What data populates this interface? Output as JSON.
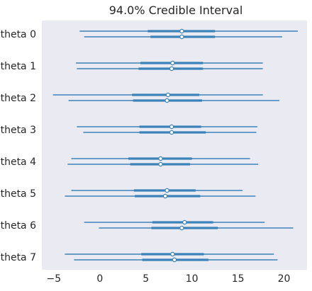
{
  "chart_data": {
    "type": "forest",
    "title": "94.0% Credible Interval",
    "xlabel": "",
    "ylabel": "",
    "xlim": [
      -6.3,
      22.5
    ],
    "xticks": [
      -5,
      0,
      5,
      10,
      15,
      20
    ],
    "xtick_labels": [
      "−5",
      "0",
      "5",
      "10",
      "15",
      "20"
    ],
    "grid": false,
    "background_color": "#eaeaf2",
    "line_color": "#3a82b8",
    "marker_fill": "#ffffff",
    "categories": [
      "theta 0",
      "theta 1",
      "theta 2",
      "theta 3",
      "theta 4",
      "theta 5",
      "theta 6",
      "theta 7"
    ],
    "chains": [
      [
        {
          "hdi_low": -2.2,
          "hdi_high": 21.5,
          "iqr_low": 5.2,
          "iqr_high": 12.5,
          "median": 8.9
        },
        {
          "hdi_low": -1.7,
          "hdi_high": 19.8,
          "iqr_low": 5.5,
          "iqr_high": 12.5,
          "median": 8.9
        }
      ],
      [
        {
          "hdi_low": -2.6,
          "hdi_high": 17.7,
          "iqr_low": 4.4,
          "iqr_high": 11.2,
          "median": 7.9
        },
        {
          "hdi_low": -2.5,
          "hdi_high": 17.7,
          "iqr_low": 4.2,
          "iqr_high": 11.2,
          "median": 7.8
        }
      ],
      [
        {
          "hdi_low": -5.1,
          "hdi_high": 17.7,
          "iqr_low": 3.5,
          "iqr_high": 10.8,
          "median": 7.4
        },
        {
          "hdi_low": -3.4,
          "hdi_high": 19.5,
          "iqr_low": 3.6,
          "iqr_high": 11.1,
          "median": 7.3
        }
      ],
      [
        {
          "hdi_low": -2.5,
          "hdi_high": 17.1,
          "iqr_low": 4.3,
          "iqr_high": 11.0,
          "median": 7.8
        },
        {
          "hdi_low": -1.8,
          "hdi_high": 17.0,
          "iqr_low": 4.3,
          "iqr_high": 11.5,
          "median": 7.8
        }
      ],
      [
        {
          "hdi_low": -3.1,
          "hdi_high": 16.3,
          "iqr_low": 3.1,
          "iqr_high": 10.0,
          "median": 6.6
        },
        {
          "hdi_low": -3.5,
          "hdi_high": 17.2,
          "iqr_low": 3.3,
          "iqr_high": 9.8,
          "median": 6.6
        }
      ],
      [
        {
          "hdi_low": -3.1,
          "hdi_high": 15.5,
          "iqr_low": 3.7,
          "iqr_high": 10.4,
          "median": 7.3
        },
        {
          "hdi_low": -3.8,
          "hdi_high": 16.9,
          "iqr_low": 3.8,
          "iqr_high": 10.9,
          "median": 7.1
        }
      ],
      [
        {
          "hdi_low": -1.7,
          "hdi_high": 17.9,
          "iqr_low": 5.7,
          "iqr_high": 12.3,
          "median": 9.2
        },
        {
          "hdi_low": -0.1,
          "hdi_high": 21.0,
          "iqr_low": 5.6,
          "iqr_high": 12.8,
          "median": 8.9
        }
      ],
      [
        {
          "hdi_low": -3.8,
          "hdi_high": 18.9,
          "iqr_low": 4.5,
          "iqr_high": 11.3,
          "median": 7.9
        },
        {
          "hdi_low": -2.8,
          "hdi_high": 19.3,
          "iqr_low": 4.6,
          "iqr_high": 11.8,
          "median": 8.1
        }
      ]
    ]
  }
}
